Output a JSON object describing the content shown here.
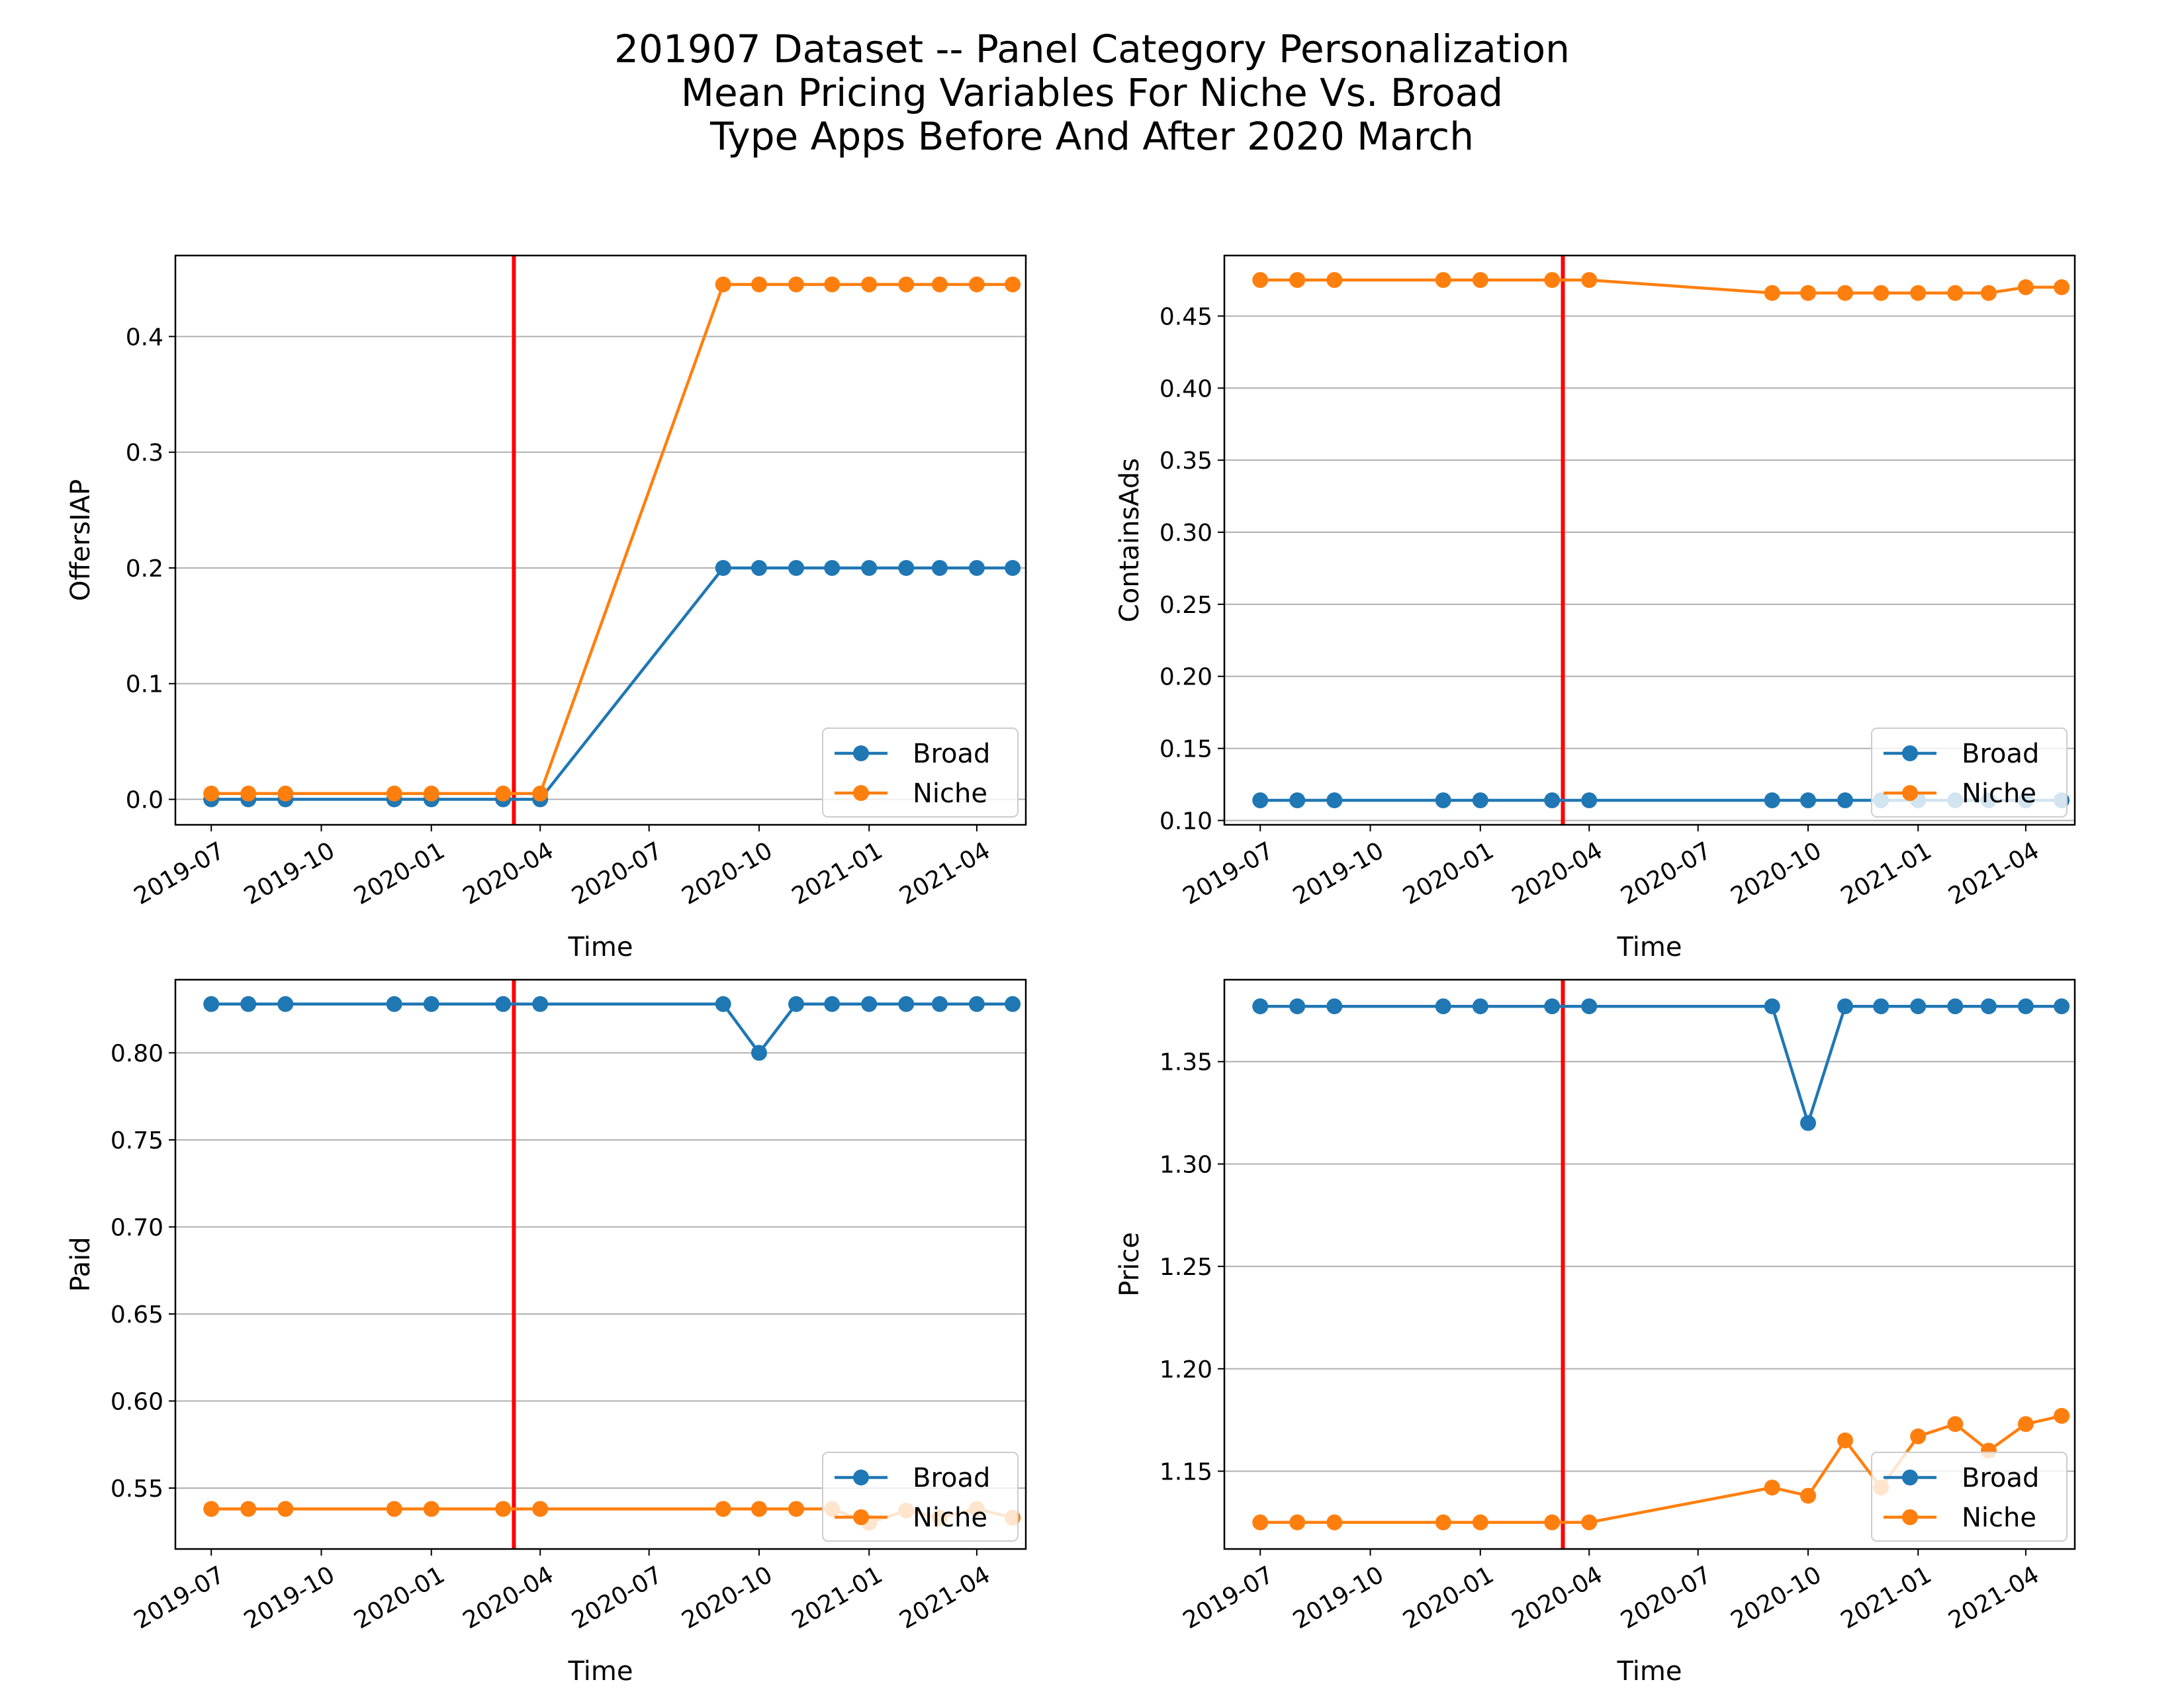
{
  "figure": {
    "title_lines": [
      "201907 Dataset -- Panel Category Personalization",
      "Mean Pricing Variables For Niche Vs. Broad",
      "Type Apps Before And After 2020 March"
    ]
  },
  "colors": {
    "broad": "#1f77b4",
    "niche": "#ff7f0e",
    "event_line": "#ff0000",
    "grid": "#b0b0b0"
  },
  "chart_data": [
    {
      "type": "line",
      "xlabel": "Time",
      "ylabel": "OffersIAP",
      "x_axis": "date",
      "xlim": [
        "2019-06-01",
        "2021-05-12"
      ],
      "ylim": [
        -0.022,
        0.47
      ],
      "yticks": [
        0.0,
        0.1,
        0.2,
        0.3,
        0.4
      ],
      "ytick_labels": [
        "0.0",
        "0.1",
        "0.2",
        "0.3",
        "0.4"
      ],
      "xticks": [
        "2019-07-01",
        "2019-10-01",
        "2020-01-01",
        "2020-04-01",
        "2020-07-01",
        "2020-10-01",
        "2021-01-01",
        "2021-04-01"
      ],
      "xtick_labels": [
        "2019-07",
        "2019-10",
        "2020-01",
        "2020-04",
        "2020-07",
        "2020-10",
        "2021-01",
        "2021-04"
      ],
      "event_date": "2020-03-10",
      "grid": "horizontal",
      "legend_position": "lower-right",
      "x": [
        "2019-07-01",
        "2019-08-01",
        "2019-09-01",
        "2019-12-01",
        "2020-01-01",
        "2020-03-01",
        "2020-04-01",
        "2020-09-01",
        "2020-10-01",
        "2020-11-01",
        "2020-12-01",
        "2021-01-01",
        "2021-02-01",
        "2021-03-01",
        "2021-04-01",
        "2021-05-01"
      ],
      "series": [
        {
          "name": "Broad",
          "values": [
            0.0,
            0.0,
            0.0,
            0.0,
            0.0,
            0.0,
            0.0,
            0.2,
            0.2,
            0.2,
            0.2,
            0.2,
            0.2,
            0.2,
            0.2,
            0.2
          ]
        },
        {
          "name": "Niche",
          "values": [
            0.005,
            0.005,
            0.005,
            0.005,
            0.005,
            0.005,
            0.005,
            0.445,
            0.445,
            0.445,
            0.445,
            0.445,
            0.445,
            0.445,
            0.445,
            0.445
          ]
        }
      ]
    },
    {
      "type": "line",
      "xlabel": "Time",
      "ylabel": "ContainsAds",
      "x_axis": "date",
      "xlim": [
        "2019-06-01",
        "2021-05-12"
      ],
      "ylim": [
        0.097,
        0.492
      ],
      "yticks": [
        0.1,
        0.15,
        0.2,
        0.25,
        0.3,
        0.35,
        0.4,
        0.45
      ],
      "ytick_labels": [
        "0.10",
        "0.15",
        "0.20",
        "0.25",
        "0.30",
        "0.35",
        "0.40",
        "0.45"
      ],
      "xticks": [
        "2019-07-01",
        "2019-10-01",
        "2020-01-01",
        "2020-04-01",
        "2020-07-01",
        "2020-10-01",
        "2021-01-01",
        "2021-04-01"
      ],
      "xtick_labels": [
        "2019-07",
        "2019-10",
        "2020-01",
        "2020-04",
        "2020-07",
        "2020-10",
        "2021-01",
        "2021-04"
      ],
      "event_date": "2020-03-10",
      "grid": "horizontal",
      "legend_position": "lower-right",
      "x": [
        "2019-07-01",
        "2019-08-01",
        "2019-09-01",
        "2019-12-01",
        "2020-01-01",
        "2020-03-01",
        "2020-04-01",
        "2020-09-01",
        "2020-10-01",
        "2020-11-01",
        "2020-12-01",
        "2021-01-01",
        "2021-02-01",
        "2021-03-01",
        "2021-04-01",
        "2021-05-01"
      ],
      "series": [
        {
          "name": "Broad",
          "values": [
            0.114,
            0.114,
            0.114,
            0.114,
            0.114,
            0.114,
            0.114,
            0.114,
            0.114,
            0.114,
            0.114,
            0.114,
            0.114,
            0.114,
            0.114,
            0.114
          ]
        },
        {
          "name": "Niche",
          "values": [
            0.475,
            0.475,
            0.475,
            0.475,
            0.475,
            0.475,
            0.475,
            0.466,
            0.466,
            0.466,
            0.466,
            0.466,
            0.466,
            0.466,
            0.47,
            0.47
          ]
        }
      ]
    },
    {
      "type": "line",
      "xlabel": "Time",
      "ylabel": "Paid",
      "x_axis": "date",
      "xlim": [
        "2019-06-01",
        "2021-05-12"
      ],
      "ylim": [
        0.515,
        0.842
      ],
      "yticks": [
        0.55,
        0.6,
        0.65,
        0.7,
        0.75,
        0.8
      ],
      "ytick_labels": [
        "0.55",
        "0.60",
        "0.65",
        "0.70",
        "0.75",
        "0.80"
      ],
      "xticks": [
        "2019-07-01",
        "2019-10-01",
        "2020-01-01",
        "2020-04-01",
        "2020-07-01",
        "2020-10-01",
        "2021-01-01",
        "2021-04-01"
      ],
      "xtick_labels": [
        "2019-07",
        "2019-10",
        "2020-01",
        "2020-04",
        "2020-07",
        "2020-10",
        "2021-01",
        "2021-04"
      ],
      "event_date": "2020-03-10",
      "grid": "horizontal",
      "legend_position": "lower-right",
      "x": [
        "2019-07-01",
        "2019-08-01",
        "2019-09-01",
        "2019-12-01",
        "2020-01-01",
        "2020-03-01",
        "2020-04-01",
        "2020-09-01",
        "2020-10-01",
        "2020-11-01",
        "2020-12-01",
        "2021-01-01",
        "2021-02-01",
        "2021-03-01",
        "2021-04-01",
        "2021-05-01"
      ],
      "series": [
        {
          "name": "Broad",
          "values": [
            0.828,
            0.828,
            0.828,
            0.828,
            0.828,
            0.828,
            0.828,
            0.828,
            0.8,
            0.828,
            0.828,
            0.828,
            0.828,
            0.828,
            0.828,
            0.828
          ]
        },
        {
          "name": "Niche",
          "values": [
            0.538,
            0.538,
            0.538,
            0.538,
            0.538,
            0.538,
            0.538,
            0.538,
            0.538,
            0.538,
            0.538,
            0.53,
            0.537,
            0.533,
            0.538,
            0.533
          ]
        }
      ]
    },
    {
      "type": "line",
      "xlabel": "Time",
      "ylabel": "Price",
      "x_axis": "date",
      "xlim": [
        "2019-06-01",
        "2021-05-12"
      ],
      "ylim": [
        1.112,
        1.39
      ],
      "yticks": [
        1.15,
        1.2,
        1.25,
        1.3,
        1.35
      ],
      "ytick_labels": [
        "1.15",
        "1.20",
        "1.25",
        "1.30",
        "1.35"
      ],
      "xticks": [
        "2019-07-01",
        "2019-10-01",
        "2020-01-01",
        "2020-04-01",
        "2020-07-01",
        "2020-10-01",
        "2021-01-01",
        "2021-04-01"
      ],
      "xtick_labels": [
        "2019-07",
        "2019-10",
        "2020-01",
        "2020-04",
        "2020-07",
        "2020-10",
        "2021-01",
        "2021-04"
      ],
      "event_date": "2020-03-10",
      "grid": "horizontal",
      "legend_position": "lower-right",
      "x": [
        "2019-07-01",
        "2019-08-01",
        "2019-09-01",
        "2019-12-01",
        "2020-01-01",
        "2020-03-01",
        "2020-04-01",
        "2020-09-01",
        "2020-10-01",
        "2020-11-01",
        "2020-12-01",
        "2021-01-01",
        "2021-02-01",
        "2021-03-01",
        "2021-04-01",
        "2021-05-01"
      ],
      "series": [
        {
          "name": "Broad",
          "values": [
            1.377,
            1.377,
            1.377,
            1.377,
            1.377,
            1.377,
            1.377,
            1.377,
            1.32,
            1.377,
            1.377,
            1.377,
            1.377,
            1.377,
            1.377,
            1.377
          ]
        },
        {
          "name": "Niche",
          "values": [
            1.125,
            1.125,
            1.125,
            1.125,
            1.125,
            1.125,
            1.125,
            1.142,
            1.138,
            1.165,
            1.142,
            1.167,
            1.173,
            1.16,
            1.173,
            1.177
          ]
        }
      ]
    }
  ]
}
